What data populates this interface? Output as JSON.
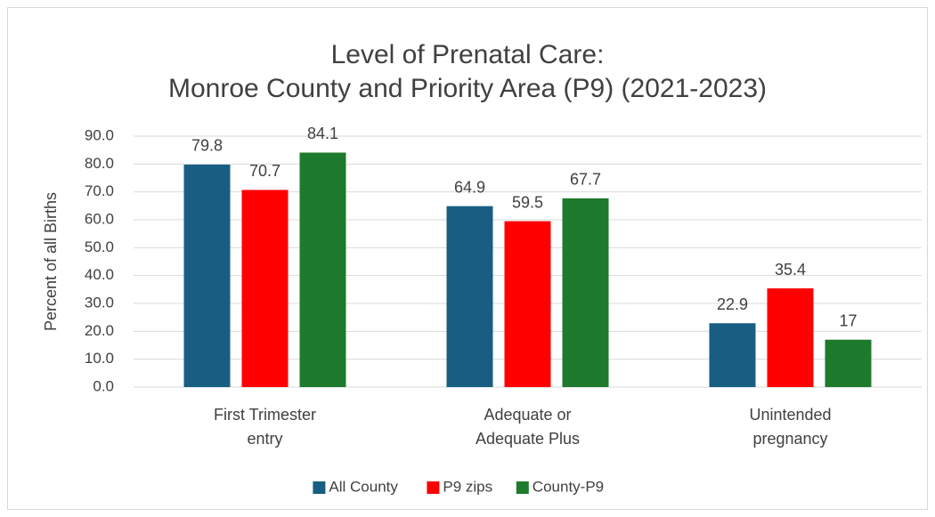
{
  "chart_data": {
    "type": "bar",
    "title": "Level of Prenatal Care:\nMonroe County and Priority Area (P9) (2021-2023)",
    "y_label": "Percent of all Births",
    "categories": [
      "First Trimester\nentry",
      "Adequate or\nAdequate Plus",
      "Unintended\npregnancy"
    ],
    "series": [
      {
        "name": "All County",
        "color": "#175e82",
        "values": [
          79.8,
          64.9,
          22.9
        ]
      },
      {
        "name": "P9 zips",
        "color": "#ff0000",
        "values": [
          70.7,
          59.5,
          35.4
        ]
      },
      {
        "name": "County-P9",
        "color": "#1e7a2c",
        "values": [
          84.1,
          67.7,
          17
        ]
      }
    ],
    "ylim": [
      0,
      90
    ],
    "yticks": [
      {
        "value": 0,
        "label": "0.0"
      },
      {
        "value": 10,
        "label": "10.0"
      },
      {
        "value": 20,
        "label": "20.0"
      },
      {
        "value": 30,
        "label": "30.0"
      },
      {
        "value": 40,
        "label": "40.0"
      },
      {
        "value": 50,
        "label": "50.0"
      },
      {
        "value": 60,
        "label": "60.0"
      },
      {
        "value": 70,
        "label": "70.0"
      },
      {
        "value": 80,
        "label": "80.0"
      },
      {
        "value": 90,
        "label": "90.0"
      }
    ],
    "grid": true,
    "legend": "bottom"
  }
}
